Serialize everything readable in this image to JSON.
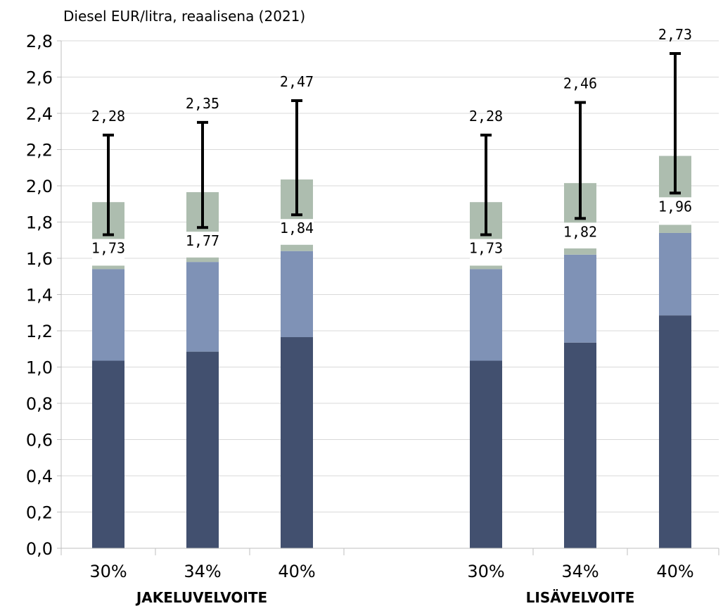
{
  "chart_data": {
    "type": "bar",
    "stacked": true,
    "ylabel": "Diesel EUR/litra, reaalisena (2021)",
    "ylim": [
      0,
      2.8
    ],
    "yticks": [
      "0,0",
      "0,2",
      "0,4",
      "0,6",
      "0,8",
      "1,0",
      "1,2",
      "1,4",
      "1,6",
      "1,8",
      "2,0",
      "2,2",
      "2,4",
      "2,6",
      "2,8"
    ],
    "grid": true,
    "groups": [
      {
        "label": "JAKELUVELVOITE",
        "categories": [
          "30%",
          "34%",
          "40%"
        ]
      },
      {
        "label": "LISÄVELVOITE",
        "categories": [
          "30%",
          "34%",
          "40%"
        ]
      }
    ],
    "series": [
      {
        "color": "#42506f",
        "values": [
          1.035,
          1.085,
          1.165,
          1.035,
          1.135,
          1.285
        ]
      },
      {
        "color": "#7f92b6",
        "values": [
          0.505,
          0.495,
          0.475,
          0.505,
          0.485,
          0.455
        ]
      },
      {
        "color": "#adbdaf",
        "values": [
          0.02,
          0.025,
          0.035,
          0.02,
          0.035,
          0.045
        ]
      },
      {
        "color": "#ffffff",
        "values": [
          0.1,
          0.1,
          0.1,
          0.1,
          0.1,
          0.1
        ]
      },
      {
        "color": "#adbdaf",
        "values": [
          0.25,
          0.26,
          0.26,
          0.25,
          0.26,
          0.28
        ]
      }
    ],
    "error_bars": {
      "low": [
        1.73,
        1.77,
        1.84,
        1.73,
        1.82,
        1.96
      ],
      "high": [
        2.28,
        2.35,
        2.47,
        2.28,
        2.46,
        2.73
      ]
    },
    "low_labels": [
      "1,73",
      "1,77",
      "1,84",
      "1,73",
      "1,82",
      "1,96"
    ],
    "high_labels": [
      "2,28",
      "2,35",
      "2,47",
      "2,28",
      "2,46",
      "2,73"
    ]
  }
}
